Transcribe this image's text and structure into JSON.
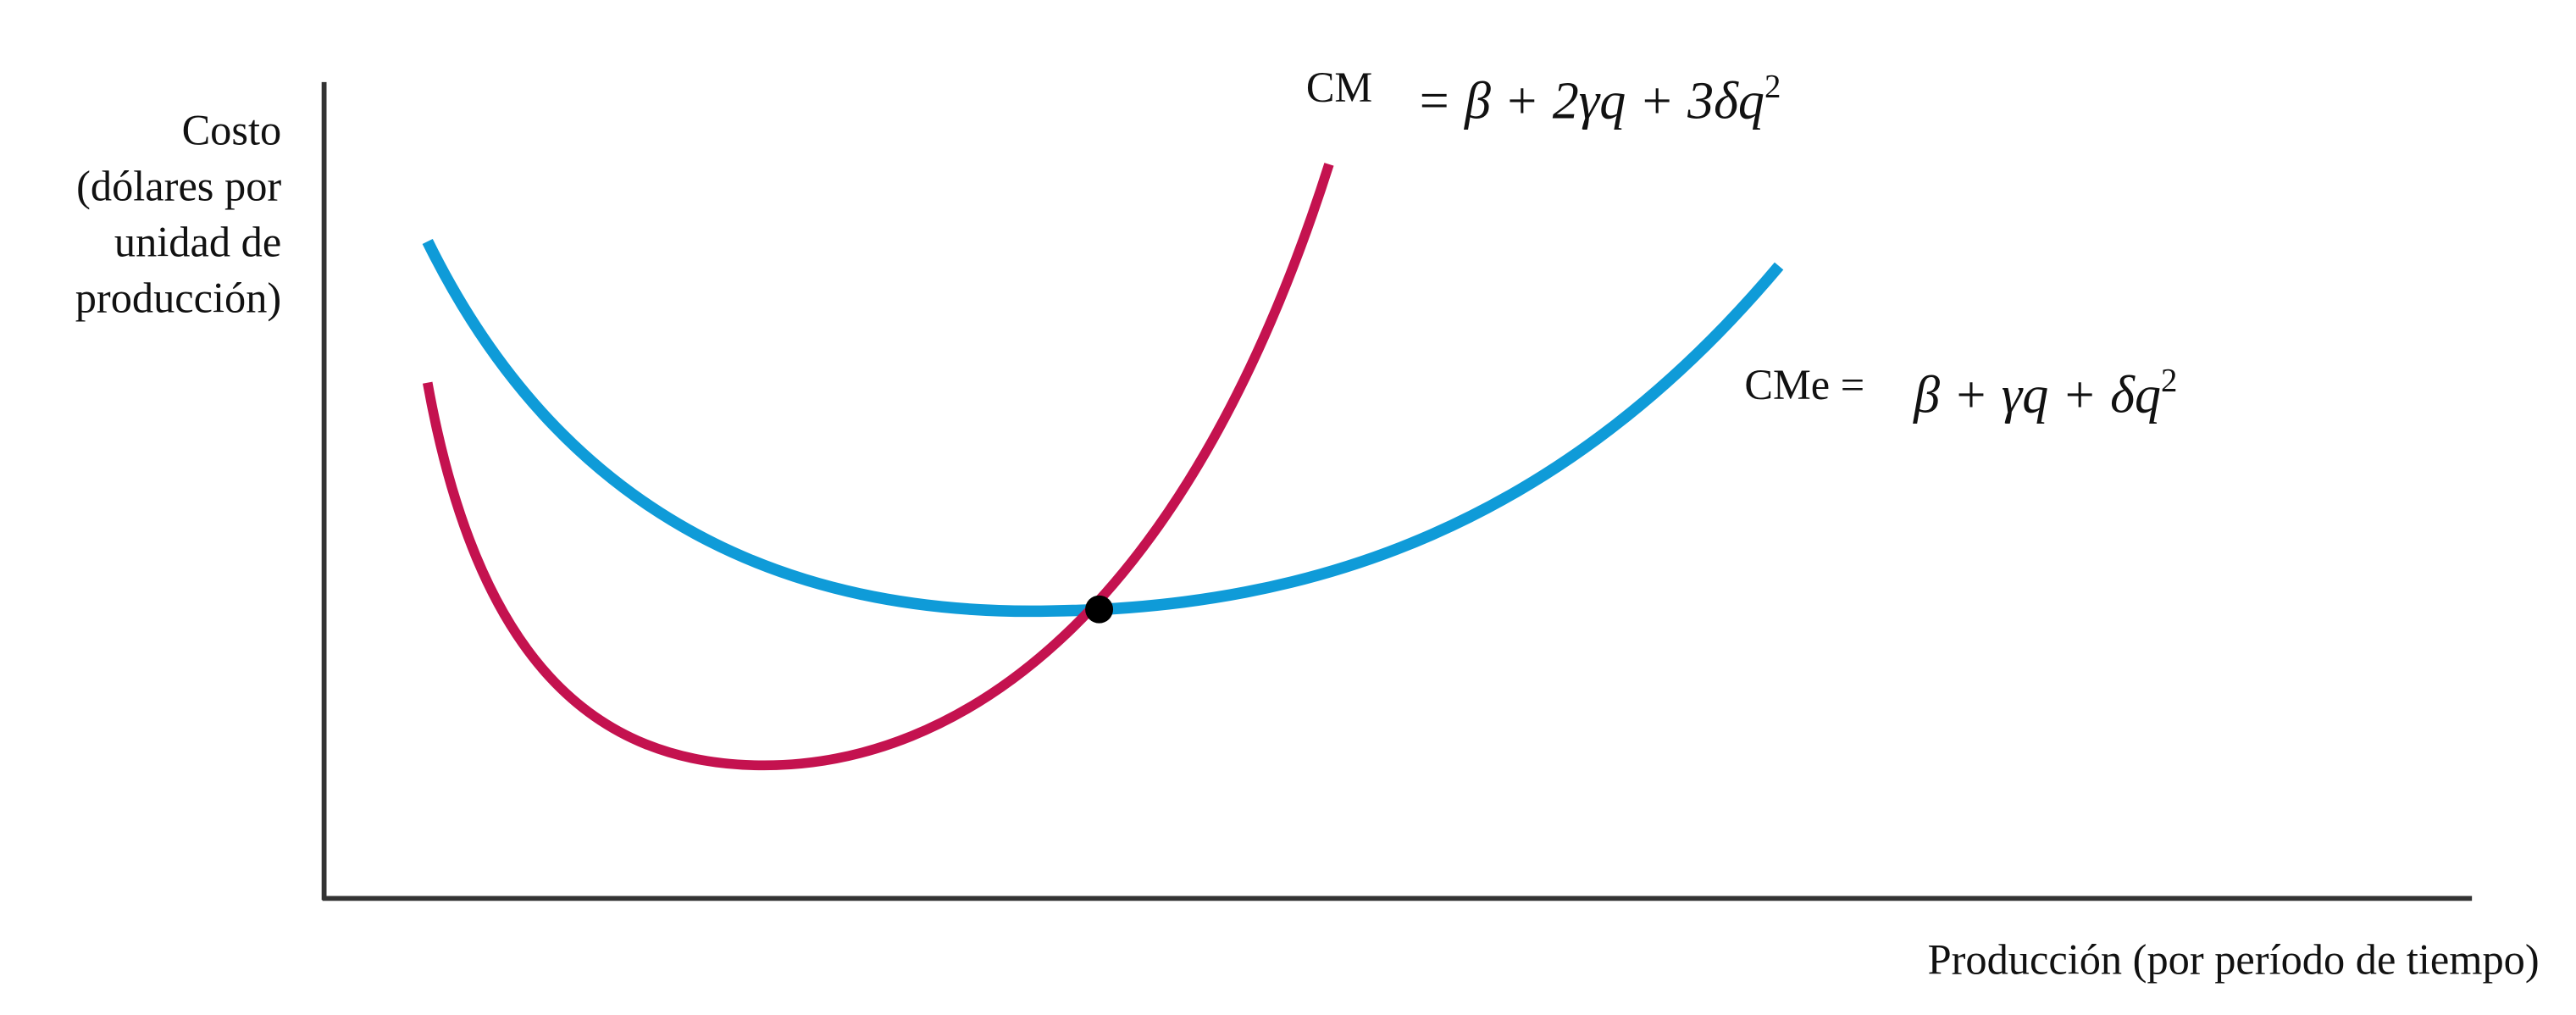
{
  "y_axis_label": [
    "Costo",
    "(dólares por",
    "unidad de",
    "producción)"
  ],
  "x_axis_label": "Producción (por período de tiempo)",
  "marginal_cost": {
    "label": "CM",
    "formula": "= β + 2γq + 3δq",
    "exponent": "2"
  },
  "average_cost": {
    "label": "CMe =",
    "formula": "β + γq + δq",
    "exponent": "2"
  }
}
